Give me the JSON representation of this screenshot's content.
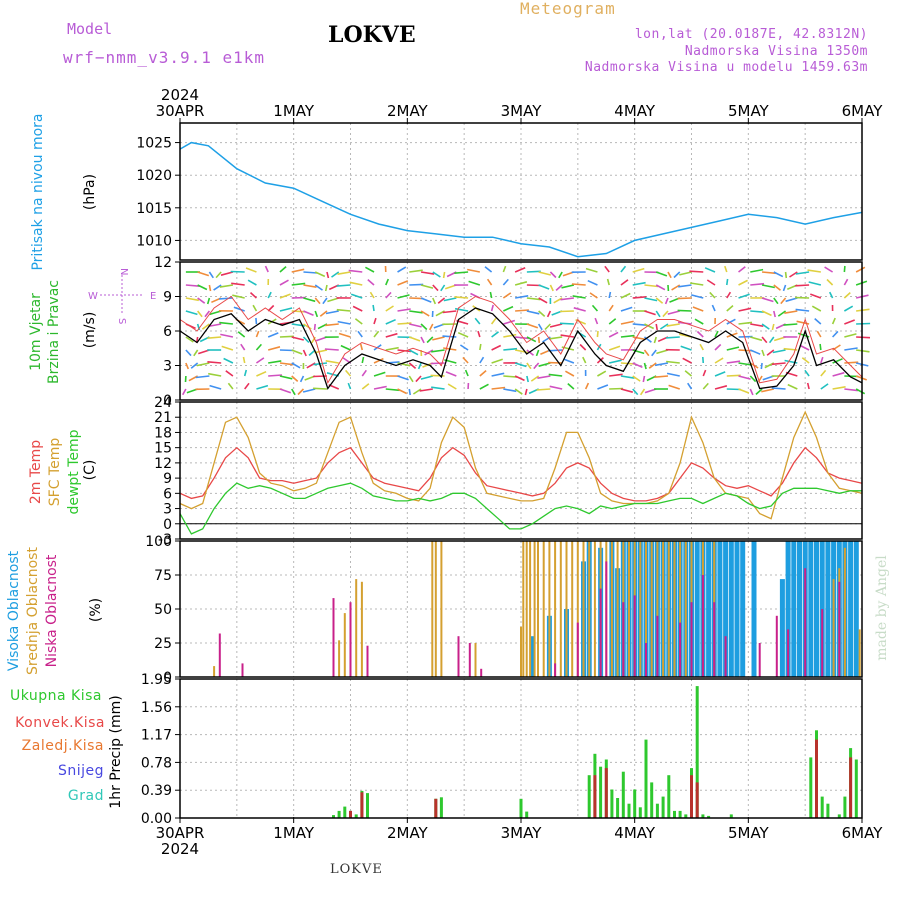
{
  "header": {
    "model_label": "Model",
    "model_name": "wrf−nmm_v3.9.1  e1km",
    "station": "LOKVE",
    "title": "Meteogram",
    "coords": "lon,lat (20.0187E, 42.8312N)",
    "altitude": "Nadmorska Visina 1350m",
    "model_altitude": "Nadmorska Visina u modelu 1459.63m"
  },
  "footer": {
    "station": "LOKVE"
  },
  "watermark": "made by Angel",
  "time_axis": {
    "year": "2024",
    "labels": [
      "30APR",
      "1MAY",
      "2MAY",
      "3MAY",
      "4MAY",
      "5MAY",
      "6MAY"
    ],
    "start": "2024-04-30 00:00",
    "end": "2024-05-06 00:00"
  },
  "colors": {
    "pressure": "#1ea0e6",
    "wind_label": "#2db82d",
    "temp2m": "#e84848",
    "sfc": "#d4a030",
    "dewpt": "#2ec82e",
    "high_cloud": "#1e9ee0",
    "mid_cloud": "#d4a030",
    "low_cloud": "#c8208a",
    "total_precip": "#2ec82e",
    "conv_precip": "#e84848",
    "frz_precip": "#e87830",
    "snow": "#4848e0",
    "hail": "#30c8b8",
    "compass": "#b85cd6"
  },
  "chart_data": [
    {
      "type": "line",
      "title": "",
      "ylabel_left": "Pritisak na nivou mora",
      "unit": "(hPa)",
      "ylim": [
        1007,
        1028
      ],
      "yticks": [
        1010,
        1015,
        1020,
        1025
      ],
      "grid": true,
      "x_day": [
        0,
        0.1,
        0.25,
        0.5,
        0.75,
        1.0,
        1.25,
        1.5,
        1.75,
        2.0,
        2.25,
        2.5,
        2.75,
        3.0,
        3.25,
        3.5,
        3.75,
        4.0,
        4.25,
        4.5,
        4.75,
        5.0,
        5.25,
        5.5,
        5.75,
        6.0
      ],
      "series": [
        {
          "values": [
            1024,
            1025,
            1024.5,
            1021,
            1018.8,
            1018,
            1016,
            1014,
            1012.5,
            1011.5,
            1011,
            1010.5,
            1010.5,
            1009.5,
            1009,
            1007.5,
            1008,
            1010,
            1011,
            1012,
            1013,
            1014,
            1013.5,
            1012.5,
            1013.5,
            1014.3
          ]
        }
      ]
    },
    {
      "type": "line",
      "title": "",
      "ylabel_left": [
        "10m Vjetar",
        "Brzina i Pravac"
      ],
      "unit": "(m/s)",
      "ylim": [
        0,
        12
      ],
      "yticks": [
        0,
        3,
        6,
        9,
        12
      ],
      "grid": true,
      "compass": {
        "north": "N",
        "south": "S",
        "west": "W",
        "east": "E"
      },
      "x_day": [
        0,
        0.15,
        0.3,
        0.45,
        0.6,
        0.75,
        0.9,
        1.05,
        1.2,
        1.3,
        1.45,
        1.6,
        1.75,
        1.9,
        2.05,
        2.2,
        2.3,
        2.45,
        2.6,
        2.75,
        2.9,
        3.05,
        3.2,
        3.35,
        3.5,
        3.65,
        3.75,
        3.9,
        4.05,
        4.2,
        4.35,
        4.5,
        4.65,
        4.8,
        4.95,
        5.1,
        5.25,
        5.4,
        5.5,
        5.6,
        5.75,
        5.9,
        6.0
      ],
      "series": [
        {
          "name": "wind speed",
          "values": [
            6,
            5,
            7,
            7.5,
            6,
            7,
            6.5,
            7,
            4,
            1,
            3,
            4,
            3.5,
            3,
            3.5,
            3,
            2,
            7,
            8,
            7.5,
            6,
            4,
            5,
            3,
            6,
            4,
            3,
            2.5,
            5,
            6,
            6,
            5.5,
            5,
            6,
            5,
            1,
            1.2,
            3,
            6,
            3,
            3.5,
            2,
            1.5
          ]
        },
        {
          "name": "wind gust",
          "values": [
            7,
            6,
            8,
            9,
            7,
            8,
            7,
            8,
            5,
            1.5,
            4,
            5,
            4.5,
            4,
            4.5,
            4,
            3,
            8,
            9,
            8.5,
            7,
            5,
            6,
            4,
            7,
            5,
            4,
            3.5,
            6,
            7,
            7,
            6.5,
            6,
            7,
            6,
            1.5,
            1.8,
            4,
            7,
            4,
            4.5,
            3,
            2
          ]
        }
      ]
    },
    {
      "type": "line",
      "title": "",
      "ylabel_left": [
        "2m Temp",
        "SFC Temp",
        "dewpt Temp"
      ],
      "unit": "(C)",
      "ylim": [
        -3,
        24
      ],
      "yticks": [
        -3,
        0,
        3,
        6,
        9,
        12,
        15,
        18,
        21,
        24
      ],
      "grid": true,
      "x_day": [
        0,
        0.1,
        0.2,
        0.3,
        0.4,
        0.5,
        0.6,
        0.7,
        0.8,
        0.9,
        1.0,
        1.1,
        1.2,
        1.3,
        1.4,
        1.5,
        1.6,
        1.7,
        1.8,
        1.9,
        2.0,
        2.1,
        2.2,
        2.3,
        2.4,
        2.5,
        2.6,
        2.7,
        2.8,
        2.9,
        3.0,
        3.1,
        3.2,
        3.3,
        3.4,
        3.5,
        3.6,
        3.7,
        3.8,
        3.9,
        4.0,
        4.1,
        4.2,
        4.3,
        4.4,
        4.5,
        4.6,
        4.7,
        4.8,
        4.9,
        5.0,
        5.1,
        5.2,
        5.3,
        5.4,
        5.5,
        5.6,
        5.7,
        5.8,
        5.9,
        6.0
      ],
      "series": [
        {
          "name": "2m Temp",
          "values": [
            6,
            5,
            5.5,
            9,
            13,
            15,
            13,
            9,
            8.5,
            8.5,
            8,
            8.5,
            9,
            12,
            14,
            15,
            12,
            9,
            8,
            7.5,
            7,
            6.5,
            9,
            13,
            15,
            13.5,
            10,
            7.5,
            7,
            6.5,
            6,
            5.5,
            6,
            8,
            11,
            12,
            11,
            8,
            6,
            5,
            4.5,
            4.5,
            5,
            6,
            9,
            12,
            11,
            9,
            7.5,
            7,
            7.5,
            6.5,
            5.5,
            8,
            12,
            15,
            13,
            10,
            9,
            8.5,
            8
          ]
        },
        {
          "name": "SFC Temp",
          "values": [
            4,
            3,
            4,
            12,
            20,
            21,
            17,
            10,
            8,
            7.5,
            6.5,
            7,
            8,
            14,
            20,
            21,
            14,
            8,
            6.5,
            6,
            5,
            4.5,
            7,
            16,
            21,
            19,
            11,
            6,
            5.5,
            5,
            4.5,
            4.5,
            5,
            11,
            18,
            18,
            13,
            6,
            4.5,
            4,
            4,
            4,
            4.5,
            6,
            12,
            21,
            16,
            9,
            6,
            5.5,
            5,
            2,
            1,
            9,
            17,
            22,
            17,
            10,
            7,
            6.5,
            6
          ]
        },
        {
          "name": "dewpt Temp",
          "values": [
            2,
            -2,
            -1,
            3,
            6,
            8,
            7,
            7.5,
            7,
            6,
            5,
            5,
            6,
            7,
            7.5,
            8,
            7,
            5.5,
            5,
            4.5,
            4.5,
            5,
            4.5,
            5,
            6,
            6,
            5,
            3,
            1,
            -1,
            -1,
            0,
            1.5,
            3,
            3.5,
            3,
            2,
            3.5,
            3,
            3.5,
            4,
            4,
            4,
            4.5,
            5,
            5,
            4,
            5,
            6,
            5.5,
            4,
            3,
            3.5,
            6,
            7,
            7,
            7,
            6.5,
            6,
            6.5,
            6.5
          ]
        }
      ]
    },
    {
      "type": "bar",
      "title": "",
      "ylabel_left": [
        "Visoka Oblacnost",
        "Srednja Oblacnost",
        "Niska Oblacnost"
      ],
      "unit": "(%)",
      "ylim": [
        0,
        100
      ],
      "yticks": [
        0,
        25,
        50,
        75,
        100
      ],
      "grid": true,
      "series": [
        {
          "name": "Visoka Oblacnost",
          "x_day": [
            3.1,
            3.25,
            3.4,
            3.55,
            3.6,
            3.7,
            3.8,
            3.85,
            3.9,
            3.95,
            4.0,
            4.05,
            4.1,
            4.15,
            4.2,
            4.25,
            4.3,
            4.35,
            4.4,
            4.45,
            4.5,
            4.55,
            4.6,
            4.65,
            4.7,
            4.75,
            4.8,
            4.85,
            4.9,
            4.95,
            5.05,
            5.3,
            5.35,
            5.4,
            5.45,
            5.5,
            5.55,
            5.6,
            5.65,
            5.7,
            5.75,
            5.8,
            5.85,
            5.9,
            5.95
          ],
          "values": [
            30,
            45,
            50,
            85,
            100,
            95,
            100,
            80,
            100,
            100,
            100,
            100,
            100,
            100,
            100,
            100,
            100,
            100,
            100,
            100,
            100,
            100,
            100,
            100,
            100,
            100,
            100,
            100,
            100,
            100,
            100,
            72,
            100,
            100,
            100,
            100,
            100,
            100,
            100,
            100,
            100,
            100,
            100,
            100,
            100
          ]
        },
        {
          "name": "Srednja Oblacnost",
          "x_day": [
            0.3,
            1.4,
            1.45,
            1.55,
            1.6,
            2.22,
            2.25,
            2.3,
            2.6,
            3.0,
            3.02,
            3.05,
            3.08,
            3.12,
            3.15,
            3.2,
            3.25,
            3.3,
            3.35,
            3.4,
            3.45,
            3.5,
            3.55,
            3.6,
            3.65,
            3.7,
            3.75,
            3.8,
            3.85,
            3.9,
            3.95,
            4.0,
            4.05,
            4.1,
            4.15,
            4.2,
            4.25,
            4.3,
            4.35,
            4.4,
            4.45,
            4.5,
            4.6,
            4.7,
            5.75,
            5.8,
            5.85,
            5.98
          ],
          "values": [
            8,
            27,
            47,
            72,
            70,
            100,
            100,
            100,
            25,
            37,
            100,
            100,
            100,
            100,
            100,
            100,
            100,
            100,
            100,
            100,
            100,
            100,
            100,
            100,
            100,
            100,
            100,
            100,
            100,
            100,
            100,
            100,
            100,
            100,
            100,
            100,
            100,
            100,
            100,
            100,
            100,
            100,
            100,
            100,
            72,
            80,
            95,
            35
          ]
        },
        {
          "name": "Niska Oblacnost",
          "x_day": [
            0.35,
            0.55,
            1.35,
            1.5,
            1.65,
            2.45,
            2.55,
            2.65,
            3.3,
            3.5,
            3.7,
            3.75,
            3.9,
            4.0,
            4.1,
            4.2,
            4.4,
            4.5,
            4.6,
            4.7,
            4.8,
            5.1,
            5.25,
            5.35,
            5.5,
            5.65,
            5.8
          ],
          "values": [
            32,
            10,
            58,
            55,
            23,
            30,
            25,
            6,
            10,
            40,
            65,
            85,
            55,
            60,
            25,
            45,
            40,
            55,
            75,
            55,
            30,
            25,
            45,
            35,
            80,
            50,
            70
          ]
        }
      ]
    },
    {
      "type": "bar",
      "title": "",
      "ylabel_left": [
        "Ukupna Kisa",
        "Konvek.Kisa",
        "Zaledj.Kisa",
        "Snijeg",
        "Grad"
      ],
      "unit": "1hr Precip (mm)",
      "ylim": [
        0,
        1.95
      ],
      "yticks": [
        0,
        0.39,
        0.78,
        1.17,
        1.56,
        1.95
      ],
      "grid": true,
      "series": [
        {
          "name": "Ukupna Kisa",
          "x_day": [
            1.35,
            1.4,
            1.45,
            1.5,
            1.55,
            1.6,
            1.65,
            2.25,
            2.3,
            3.0,
            3.05,
            3.6,
            3.65,
            3.7,
            3.75,
            3.8,
            3.85,
            3.9,
            3.95,
            4.0,
            4.05,
            4.1,
            4.15,
            4.2,
            4.25,
            4.3,
            4.35,
            4.4,
            4.45,
            4.5,
            4.55,
            4.6,
            4.65,
            4.85,
            5.55,
            5.6,
            5.65,
            5.7,
            5.8,
            5.85,
            5.9,
            5.95
          ],
          "values": [
            0.04,
            0.1,
            0.16,
            0.1,
            0.05,
            0.38,
            0.35,
            0.27,
            0.29,
            0.27,
            0.09,
            0.6,
            0.9,
            0.72,
            0.82,
            0.4,
            0.28,
            0.65,
            0.2,
            0.4,
            0.15,
            1.1,
            0.5,
            0.2,
            0.3,
            0.6,
            0.1,
            0.1,
            0.05,
            0.7,
            1.85,
            0.05,
            0.03,
            0.05,
            0.85,
            1.23,
            0.3,
            0.2,
            0.05,
            0.3,
            0.98,
            0.82
          ]
        },
        {
          "name": "Konvek.Kisa",
          "x_day": [
            1.5,
            1.6,
            2.25,
            3.65,
            3.75,
            4.5,
            4.55,
            5.6,
            5.9
          ],
          "values": [
            0.1,
            0.36,
            0.27,
            0.6,
            0.7,
            0.6,
            0.5,
            1.1,
            0.85
          ]
        }
      ]
    }
  ]
}
